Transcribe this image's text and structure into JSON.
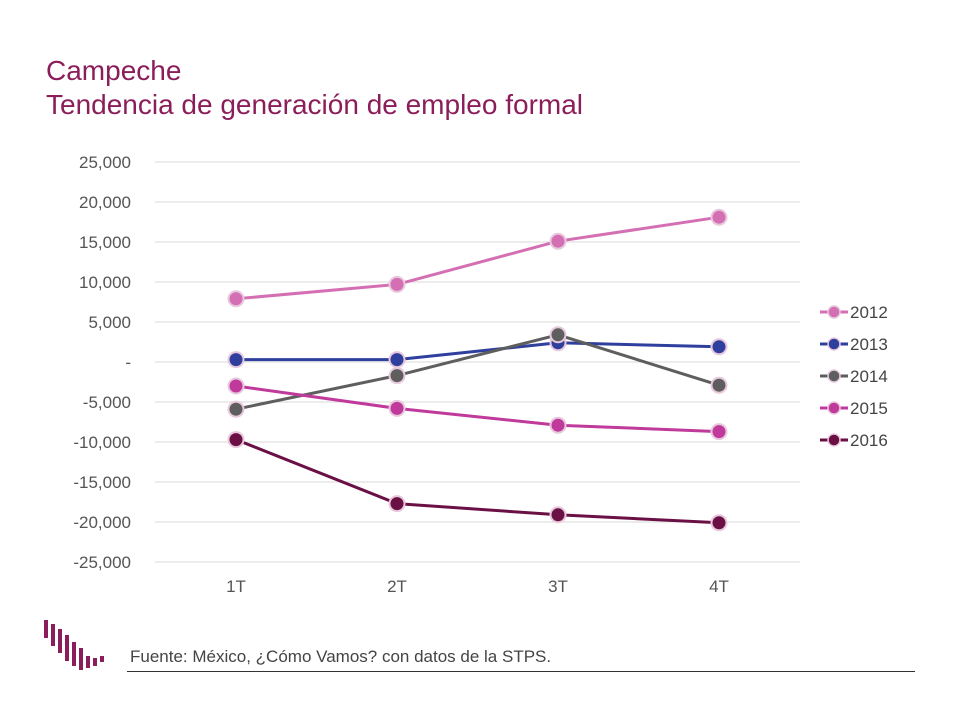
{
  "title_line1": "Campeche",
  "title_line2": "Tendencia de generación de empleo formal",
  "source": "Fuente: México, ¿Cómo Vamos? con datos de la STPS.",
  "chart_data": {
    "type": "line",
    "categories": [
      "1T",
      "2T",
      "3T",
      "4T"
    ],
    "ylim": [
      -25000,
      25000
    ],
    "ytick_values": [
      25000,
      20000,
      15000,
      10000,
      5000,
      0,
      -5000,
      -10000,
      -15000,
      -20000,
      -25000
    ],
    "ytick_labels": [
      "25,000",
      "20,000",
      "15,000",
      "10,000",
      "5,000",
      "-",
      "-5,000",
      "-10,000",
      "-15,000",
      "-20,000",
      "-25,000"
    ],
    "grid": true,
    "legend_position": "right",
    "series": [
      {
        "name": "2012",
        "color": "#d46fb4",
        "values": [
          7900,
          9700,
          15100,
          18100
        ]
      },
      {
        "name": "2013",
        "color": "#2e3f9e",
        "values": [
          300,
          300,
          2400,
          1900
        ]
      },
      {
        "name": "2014",
        "color": "#5e5e5e",
        "values": [
          -5900,
          -1700,
          3400,
          -2900
        ]
      },
      {
        "name": "2015",
        "color": "#c03a9c",
        "values": [
          -3000,
          -5800,
          -7900,
          -8700
        ]
      },
      {
        "name": "2016",
        "color": "#6b1045",
        "values": [
          -9700,
          -17700,
          -19100,
          -20100
        ]
      }
    ]
  }
}
